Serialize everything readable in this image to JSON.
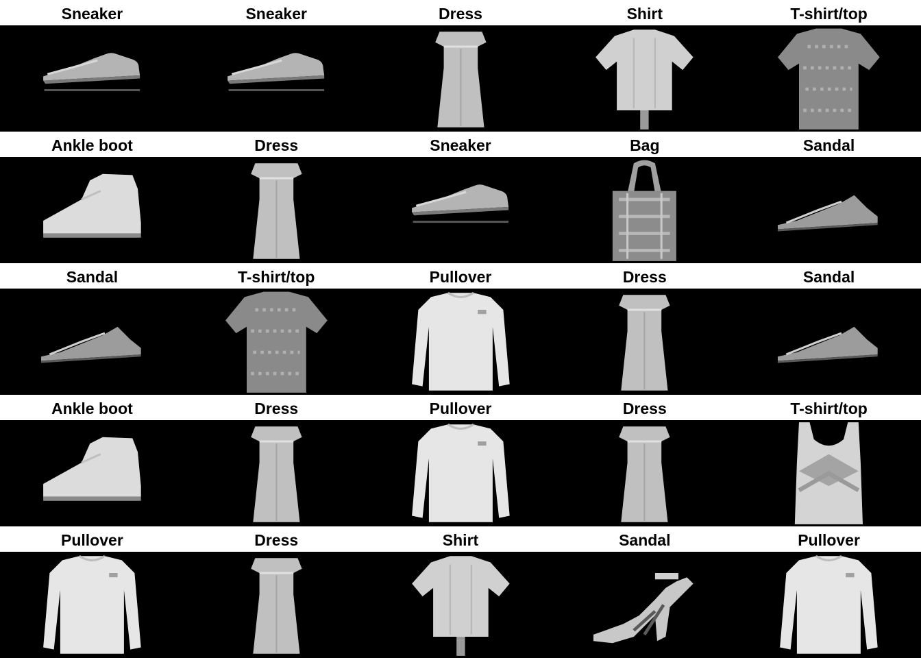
{
  "grid": {
    "rows": 5,
    "cols": 5,
    "cells": [
      {
        "label": "Sneaker",
        "icon": "sneaker"
      },
      {
        "label": "Sneaker",
        "icon": "sneaker"
      },
      {
        "label": "Dress",
        "icon": "dress"
      },
      {
        "label": "Shirt",
        "icon": "shirt"
      },
      {
        "label": "T-shirt/top",
        "icon": "tshirt"
      },
      {
        "label": "Ankle boot",
        "icon": "ankle-boot"
      },
      {
        "label": "Dress",
        "icon": "dress"
      },
      {
        "label": "Sneaker",
        "icon": "sneaker"
      },
      {
        "label": "Bag",
        "icon": "bag"
      },
      {
        "label": "Sandal",
        "icon": "sandal"
      },
      {
        "label": "Sandal",
        "icon": "sandal"
      },
      {
        "label": "T-shirt/top",
        "icon": "tshirt"
      },
      {
        "label": "Pullover",
        "icon": "pullover"
      },
      {
        "label": "Dress",
        "icon": "dress"
      },
      {
        "label": "Sandal",
        "icon": "sandal"
      },
      {
        "label": "Ankle boot",
        "icon": "ankle-boot"
      },
      {
        "label": "Dress",
        "icon": "dress"
      },
      {
        "label": "Pullover",
        "icon": "pullover"
      },
      {
        "label": "Dress",
        "icon": "dress"
      },
      {
        "label": "T-shirt/top",
        "icon": "tank-top"
      },
      {
        "label": "Pullover",
        "icon": "pullover"
      },
      {
        "label": "Dress",
        "icon": "dress"
      },
      {
        "label": "Shirt",
        "icon": "shirt"
      },
      {
        "label": "Sandal",
        "icon": "heeled-sandal"
      },
      {
        "label": "Pullover",
        "icon": "pullover"
      }
    ]
  },
  "colors": {
    "background": "#000000",
    "label_background": "#ffffff",
    "label_text": "#000000"
  }
}
